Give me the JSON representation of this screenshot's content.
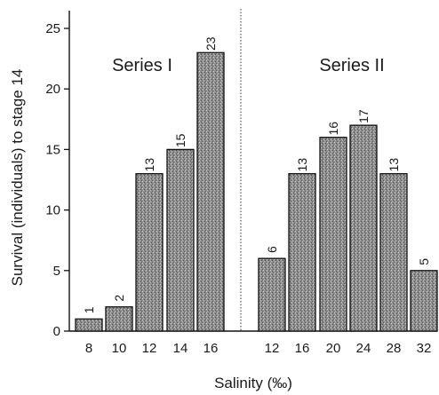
{
  "chart_data": {
    "type": "bar",
    "ylabel": "Survival (individuals) to stage 14",
    "xlabel": "Salinity (‰)",
    "ylim": [
      0,
      25
    ],
    "yticks": [
      0,
      5,
      10,
      15,
      20,
      25
    ],
    "grid": false,
    "bar_color": "#9a9a9a",
    "panels": [
      {
        "name": "Series I",
        "categories": [
          "8",
          "10",
          "12",
          "14",
          "16"
        ],
        "values": [
          1,
          2,
          13,
          15,
          23
        ]
      },
      {
        "name": "Series II",
        "categories": [
          "12",
          "16",
          "20",
          "24",
          "28",
          "32"
        ],
        "values": [
          6,
          13,
          16,
          17,
          13,
          5
        ]
      }
    ]
  }
}
